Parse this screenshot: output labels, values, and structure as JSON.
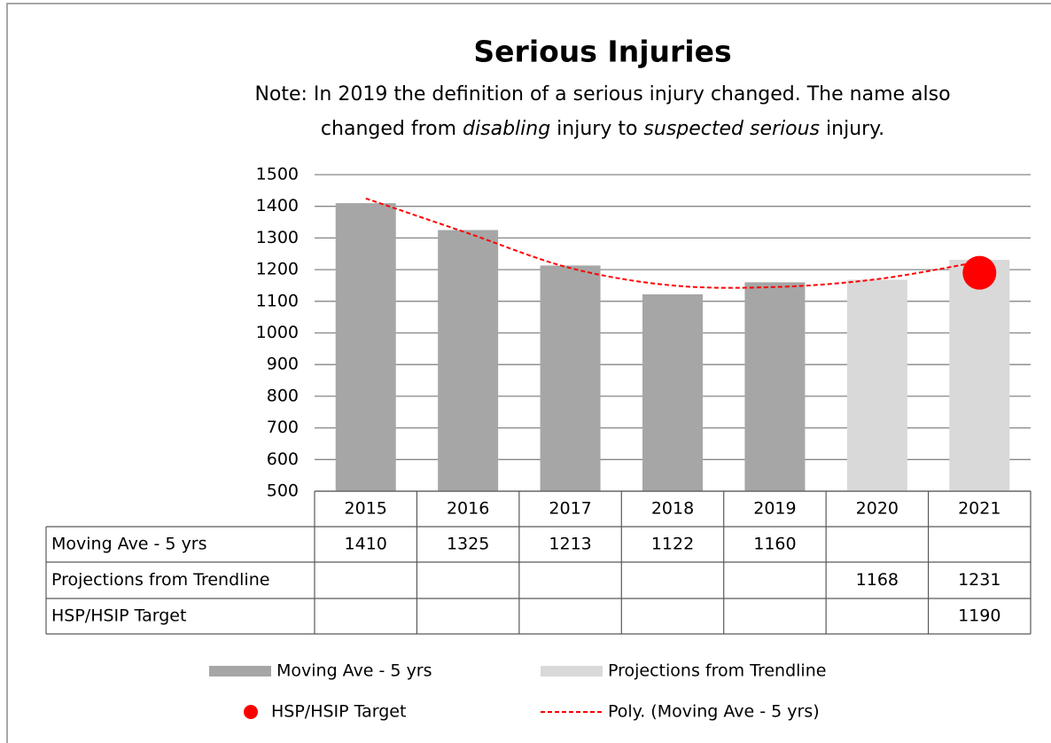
{
  "chart_data": {
    "type": "bar",
    "title": "Serious Injuries",
    "subtitle_lines": [
      [
        {
          "text": "Note: In 2019 the definition of a serious injury changed. The name also",
          "italic": false
        }
      ],
      [
        {
          "text": "changed from ",
          "italic": false
        },
        {
          "text": "disabling",
          "italic": true
        },
        {
          "text": " injury to ",
          "italic": false
        },
        {
          "text": "suspected serious",
          "italic": true
        },
        {
          "text": " injury.",
          "italic": false
        }
      ]
    ],
    "categories": [
      "2015",
      "2016",
      "2017",
      "2018",
      "2019",
      "2020",
      "2021"
    ],
    "series": [
      {
        "name": "Moving Ave - 5 yrs",
        "type": "bar",
        "color": "#a6a6a6",
        "in_table": true,
        "values": [
          1410,
          1325,
          1213,
          1122,
          1160,
          null,
          null
        ]
      },
      {
        "name": "Projections from Trendline",
        "type": "bar",
        "color": "#d9d9d9",
        "in_table": true,
        "values": [
          null,
          null,
          null,
          null,
          null,
          1168,
          1231
        ]
      },
      {
        "name": "HSP/HSIP Target",
        "type": "scatter",
        "color": "#ff0000",
        "in_table": true,
        "values": [
          null,
          null,
          null,
          null,
          null,
          null,
          1190
        ]
      },
      {
        "name": "Poly. (Moving Ave - 5 yrs)",
        "type": "line",
        "color": "#ff0000",
        "dashed": true,
        "in_table": false,
        "values": [
          1425,
          1315,
          1205,
          1150,
          1145,
          1170,
          1225
        ]
      }
    ],
    "ylim": [
      500,
      1500
    ],
    "yticks": [
      500,
      600,
      700,
      800,
      900,
      1000,
      1100,
      1200,
      1300,
      1400,
      1500
    ],
    "grid": true,
    "legend": "bottom"
  }
}
